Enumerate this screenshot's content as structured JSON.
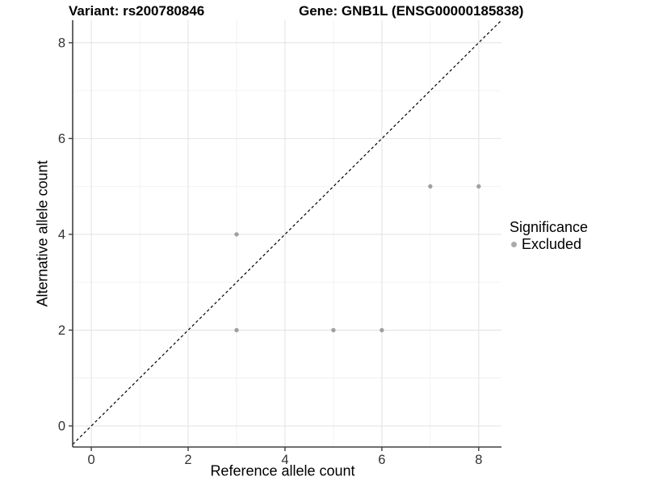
{
  "title_parts": {
    "variant": "Variant: rs200780846",
    "gene": "Gene: GNB1L (ENSG00000185838)"
  },
  "chart_data": {
    "type": "scatter",
    "title": "Variant: rs200780846    Gene: GNB1L (ENSG00000185838)",
    "xlabel": "Reference allele count",
    "ylabel": "Alternative allele count",
    "xlim": [
      -0.385,
      8.47
    ],
    "ylim": [
      -0.44,
      8.47
    ],
    "xticks": [
      0,
      2,
      4,
      6,
      8
    ],
    "yticks": [
      0,
      2,
      4,
      6,
      8
    ],
    "grid": {
      "major": [
        0,
        2,
        4,
        6,
        8
      ],
      "minor": [
        1,
        3,
        5,
        7
      ],
      "major_color": "#e4e4e4",
      "minor_color": "#efefef"
    },
    "series": [
      {
        "name": "Excluded",
        "color": "#a0a0a0",
        "points": [
          [
            3,
            4
          ],
          [
            3,
            2
          ],
          [
            5,
            2
          ],
          [
            6,
            2
          ],
          [
            7,
            5
          ],
          [
            8,
            5
          ]
        ]
      }
    ],
    "reference_line": {
      "style": "dashed",
      "slope": 1,
      "intercept": 0,
      "color": "#000000"
    },
    "legend": {
      "title": "Significance",
      "position": "right",
      "entries": [
        {
          "label": "Excluded",
          "marker_color": "#aaaaaa"
        }
      ]
    },
    "axis_color": "#404040",
    "tick_label_color": "#333333"
  }
}
